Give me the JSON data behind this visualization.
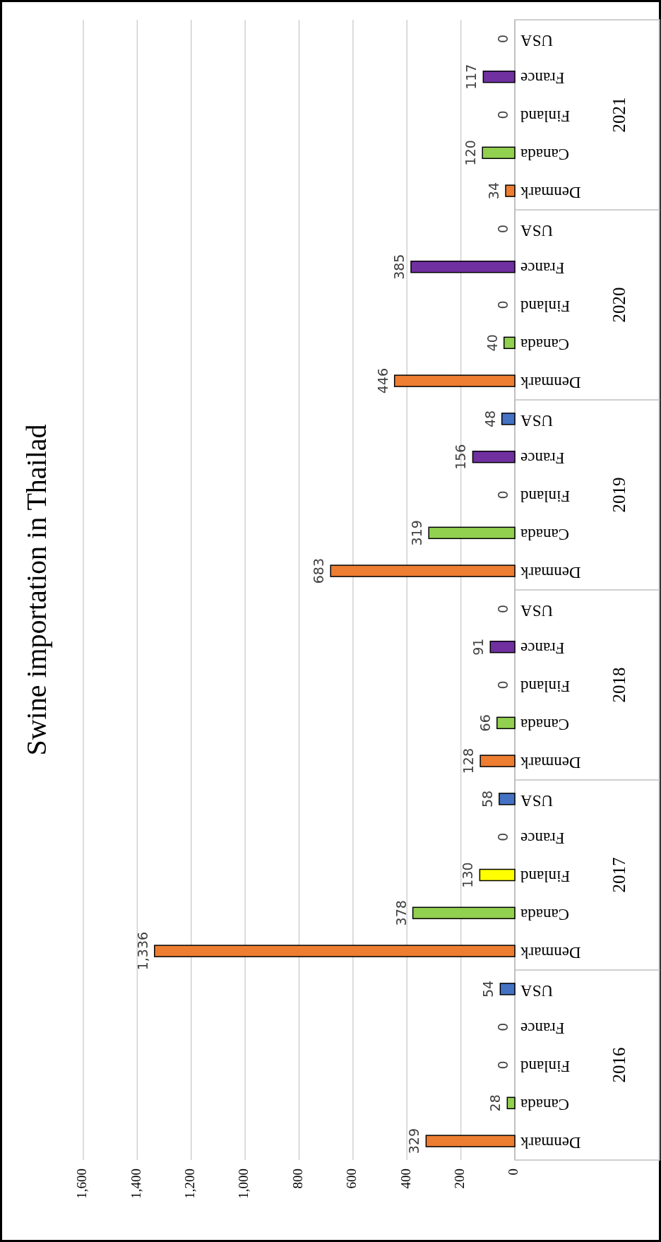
{
  "chart_data": {
    "type": "bar",
    "title": "Swine importation in Thailad",
    "orientation": "horizontal",
    "categories": [
      "USA",
      "France",
      "Finland",
      "Canada",
      "Denmark",
      "USA",
      "France",
      "Finland",
      "Canada",
      "Denmark",
      "USA",
      "France",
      "Finland",
      "Canada",
      "Denmark",
      "USA",
      "France",
      "Finland",
      "Canada",
      "Denmark",
      "USA",
      "France",
      "Finland",
      "Canada",
      "Denmark",
      "USA",
      "France",
      "Finland",
      "Canada",
      "Denmark"
    ],
    "values": [
      0,
      117,
      0,
      120,
      34,
      0,
      385,
      0,
      40,
      446,
      48,
      156,
      0,
      319,
      683,
      0,
      91,
      0,
      66,
      128,
      58,
      0,
      130,
      378,
      1336,
      54,
      0,
      0,
      28,
      329
    ],
    "colors": [
      null,
      "#7030a0",
      null,
      "#92d050",
      "#ed7d31",
      null,
      "#7030a0",
      null,
      "#92d050",
      "#ed7d31",
      "#4472c4",
      "#7030a0",
      null,
      "#92d050",
      "#ed7d31",
      null,
      "#7030a0",
      null,
      "#92d050",
      "#ed7d31",
      "#4472c4",
      null,
      "#ffff00",
      "#92d050",
      "#ed7d31",
      "#4472c4",
      null,
      null,
      "#92d050",
      "#ed7d31"
    ],
    "value_labels": [
      "0",
      "117",
      "0",
      "120",
      "34",
      "0",
      "385",
      "0",
      "40",
      "446",
      "48",
      "156",
      "0",
      "319",
      "683",
      "0",
      "91",
      "0",
      "66",
      "128",
      "58",
      "0",
      "130",
      "378",
      "1,336",
      "54",
      "0",
      "0",
      "28",
      "329"
    ],
    "annotations": [
      "2021",
      "2020",
      "2019",
      "2018",
      "2017",
      "2016"
    ],
    "xlim": [
      1600,
      0
    ],
    "xticks": [
      {
        "value": 1600,
        "label": "1,600"
      },
      {
        "value": 1400,
        "label": "1,400"
      },
      {
        "value": 1200,
        "label": "1,200"
      },
      {
        "value": 1000,
        "label": "1,000"
      },
      800,
      600,
      400,
      200,
      0
    ],
    "grid": "x"
  }
}
